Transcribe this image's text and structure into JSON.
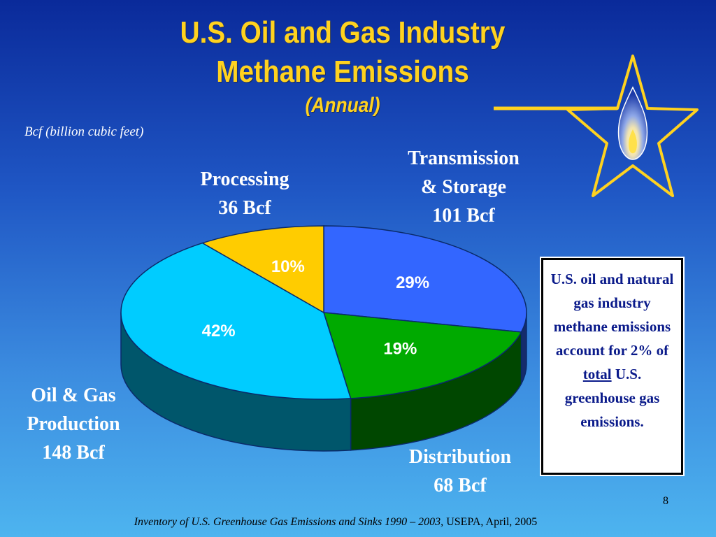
{
  "title": {
    "line1": "U.S. Oil and Gas Industry",
    "line2": "Methane Emissions",
    "line3": "(Annual)"
  },
  "units_note": "Bcf  (billion cubic feet)",
  "colors": {
    "transmission": "#3366ff",
    "distribution": "#00aa00",
    "production": "#00ccff",
    "processing": "#ffcc00",
    "title": "#ffd21f"
  },
  "icons": [
    "star-icon",
    "flame-icon"
  ],
  "chart_data": {
    "type": "pie",
    "slices": [
      {
        "label": "Transmission & Storage",
        "value_text": "101 Bcf",
        "value": 101,
        "percent": 29,
        "percent_text": "29%"
      },
      {
        "label": "Distribution",
        "value_text": "68 Bcf",
        "value": 68,
        "percent": 19,
        "percent_text": "19%"
      },
      {
        "label": "Oil & Gas Production",
        "value_text": "148 Bcf",
        "value": 148,
        "percent": 42,
        "percent_text": "42%"
      },
      {
        "label": "Processing",
        "value_text": "36 Bcf",
        "value": 36,
        "percent": 10,
        "percent_text": "10%"
      }
    ]
  },
  "labels": {
    "processing": {
      "line1": "Processing",
      "line2": "36 Bcf"
    },
    "transmission": {
      "line1": "Transmission",
      "line2": "& Storage",
      "line3": "101 Bcf"
    },
    "production": {
      "line1": "Oil & Gas",
      "line2": "Production",
      "line3": "148 Bcf"
    },
    "distribution": {
      "line1": "Distribution",
      "line2": "68 Bcf"
    }
  },
  "note": {
    "before": "U.S. oil and natural gas industry methane emissions account for 2% of",
    "underlined": "total",
    "after": "U.S. greenhouse gas emissions."
  },
  "page_number": "8",
  "source": {
    "italic": "Inventory of U.S. Greenhouse Gas Emissions and  Sinks 1990 – 2003,",
    "plain": " USEPA, April, 2005"
  }
}
